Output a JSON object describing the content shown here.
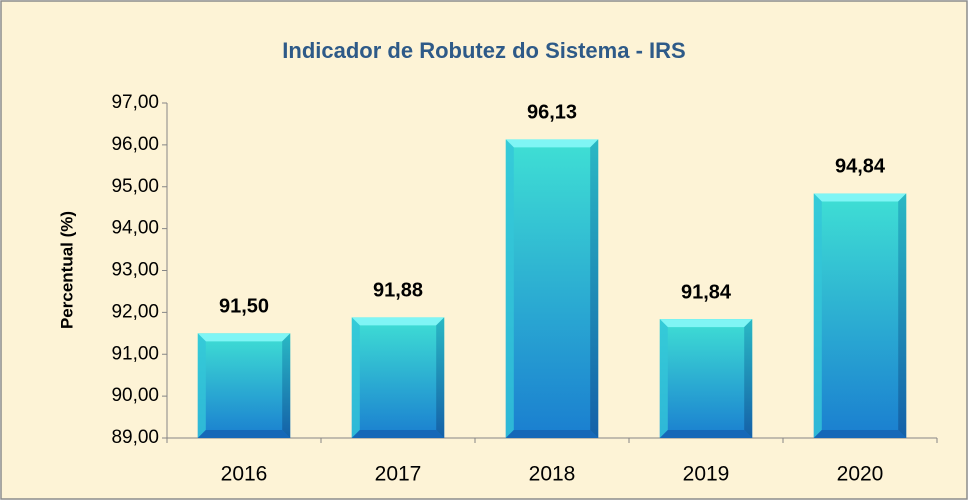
{
  "chart_data": {
    "type": "bar",
    "title": "Indicador de Robutez do Sistema - IRS",
    "y_label": "Percentual (%)",
    "categories": [
      "2016",
      "2017",
      "2018",
      "2019",
      "2020"
    ],
    "values": [
      91.5,
      91.88,
      96.13,
      91.84,
      94.84
    ],
    "value_labels": [
      "91,50",
      "91,88",
      "96,13",
      "91,84",
      "94,84"
    ],
    "color": "#2ec4d8",
    "ylim": [
      89,
      97
    ],
    "yticks": [
      {
        "value": 89,
        "label": "89,00"
      },
      {
        "value": 90,
        "label": "90,00"
      },
      {
        "value": 91,
        "label": "91,00"
      },
      {
        "value": 92,
        "label": "92,00"
      },
      {
        "value": 93,
        "label": "93,00"
      },
      {
        "value": 94,
        "label": "94,00"
      },
      {
        "value": 95,
        "label": "95,00"
      },
      {
        "value": 96,
        "label": "96,00"
      },
      {
        "value": 97,
        "label": "97,00"
      }
    ],
    "grid": false
  }
}
